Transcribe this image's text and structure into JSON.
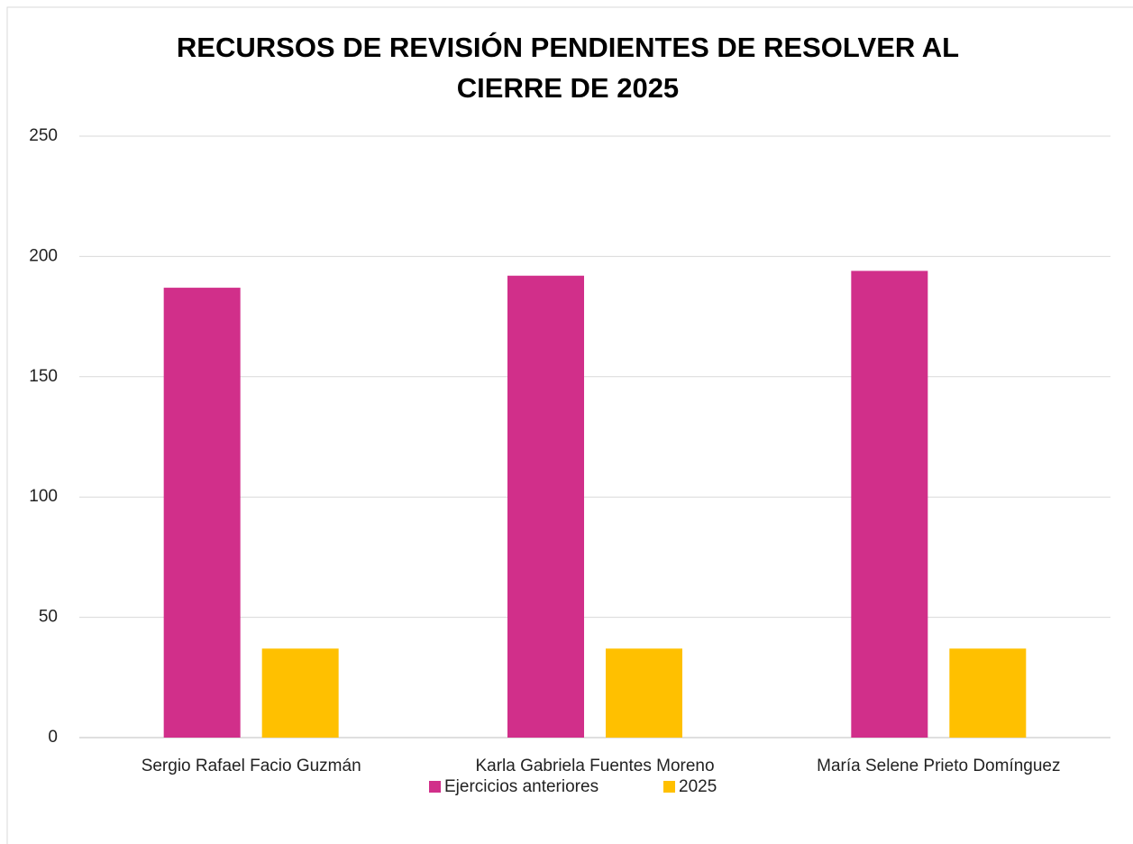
{
  "chart_data": {
    "type": "bar",
    "title": "RECURSOS DE REVISIÓN PENDIENTES DE RESOLVER AL CIERRE DE 2025",
    "categories": [
      "Sergio Rafael Facio Guzmán",
      "Karla Gabriela Fuentes Moreno",
      "María Selene Prieto Domínguez"
    ],
    "series": [
      {
        "name": "Ejercicios anteriores",
        "color": "#d12f8a",
        "values": [
          187,
          192,
          194
        ]
      },
      {
        "name": "2025",
        "color": "#ffc000",
        "values": [
          37,
          37,
          37
        ]
      }
    ],
    "ylim": [
      0,
      250
    ],
    "yticks": [
      0,
      50,
      100,
      150,
      200,
      250
    ],
    "grid": true,
    "legend": "bottom"
  }
}
